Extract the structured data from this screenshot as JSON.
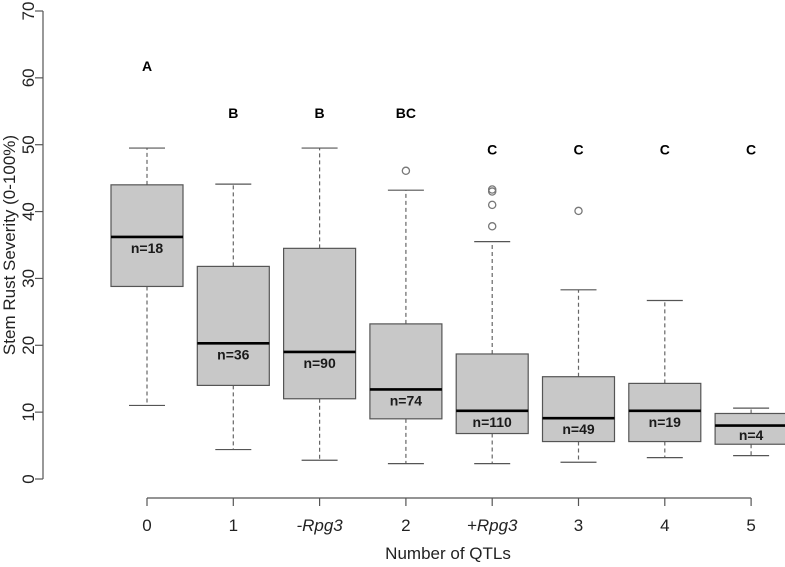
{
  "chart_data": {
    "type": "box",
    "title": "",
    "xlabel": "Number of QTLs",
    "ylabel": "Stem Rust Severity (0-100%)",
    "ylim": [
      0,
      70
    ],
    "yticks": [
      0,
      10,
      20,
      30,
      40,
      50,
      60,
      70
    ],
    "grid": false,
    "categories": [
      {
        "label": "0",
        "italic": false
      },
      {
        "label": "1",
        "italic": false
      },
      {
        "label": "-Rpg3",
        "italic": true
      },
      {
        "label": "2",
        "italic": false
      },
      {
        "label": "+Rpg3",
        "italic": true
      },
      {
        "label": "3",
        "italic": false
      },
      {
        "label": "4",
        "italic": false
      },
      {
        "label": "5",
        "italic": false
      }
    ],
    "boxes": [
      {
        "min": 11,
        "q1": 28.8,
        "median": 36.2,
        "q3": 44,
        "max": 49.5,
        "outliers": [],
        "count_label": "n=18",
        "group": "A",
        "group_y": 61
      },
      {
        "min": 4.4,
        "q1": 14,
        "median": 20.3,
        "q3": 31.8,
        "max": 44.1,
        "outliers": [],
        "count_label": "n=36",
        "group": "B",
        "group_y": 54
      },
      {
        "min": 2.8,
        "q1": 12,
        "median": 19,
        "q3": 34.5,
        "max": 49.5,
        "outliers": [],
        "count_label": "n=90",
        "group": "B",
        "group_y": 54
      },
      {
        "min": 2.3,
        "q1": 9,
        "median": 13.4,
        "q3": 23.2,
        "max": 43.2,
        "outliers": [
          46.1
        ],
        "count_label": "n=74",
        "group": "BC",
        "group_y": 54
      },
      {
        "min": 2.3,
        "q1": 6.8,
        "median": 10.2,
        "q3": 18.7,
        "max": 35.5,
        "outliers": [
          37.8,
          41,
          43,
          43.3
        ],
        "count_label": "n=110",
        "group": "C",
        "group_y": 48.5
      },
      {
        "min": 2.5,
        "q1": 5.6,
        "median": 9.1,
        "q3": 15.3,
        "max": 28.3,
        "outliers": [
          40.1
        ],
        "count_label": "n=49",
        "group": "C",
        "group_y": 48.5
      },
      {
        "min": 3.2,
        "q1": 5.6,
        "median": 10.2,
        "q3": 14.3,
        "max": 26.7,
        "outliers": [],
        "count_label": "n=19",
        "group": "C",
        "group_y": 48.5
      },
      {
        "min": 3.5,
        "q1": 5.2,
        "median": 8,
        "q3": 9.8,
        "max": 10.6,
        "outliers": [],
        "count_label": "n=4",
        "group": "C",
        "group_y": 48.5
      }
    ]
  }
}
